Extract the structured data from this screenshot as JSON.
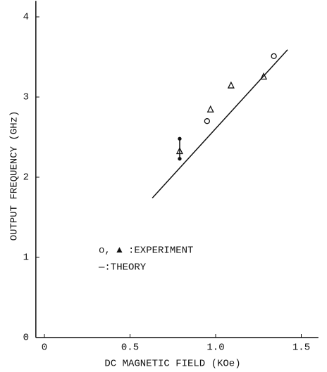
{
  "chart_data": {
    "type": "scatter",
    "xlabel": "DC MAGNETIC FIELD (KOe)",
    "ylabel": "OUTPUT FREQUENCY (GHz)",
    "xlim": [
      -0.05,
      1.6
    ],
    "ylim": [
      0,
      4.2
    ],
    "xticks": [
      0,
      0.5,
      {
        "value": 1,
        "label": "1.0"
      },
      1.5
    ],
    "yticks": [
      0,
      1,
      2,
      3,
      4
    ],
    "color": "#111111",
    "series": [
      {
        "marker": "circle",
        "x": [
          0.95,
          1.34
        ],
        "values": [
          2.7,
          3.51
        ]
      },
      {
        "marker": "triangle",
        "x": [
          0.79,
          0.97,
          1.09,
          1.28
        ],
        "values": [
          2.32,
          2.84,
          3.14,
          3.25
        ]
      },
      {
        "marker": "dot",
        "connect": true,
        "x": [
          0.79,
          0.79
        ],
        "values": [
          2.48,
          2.23
        ]
      },
      {
        "marker": "line",
        "x": [
          0.63,
          1.42
        ],
        "values": [
          1.74,
          3.59
        ]
      }
    ],
    "legend": [
      "o, ▲ :EXPERIMENT",
      "—:THEORY"
    ]
  }
}
